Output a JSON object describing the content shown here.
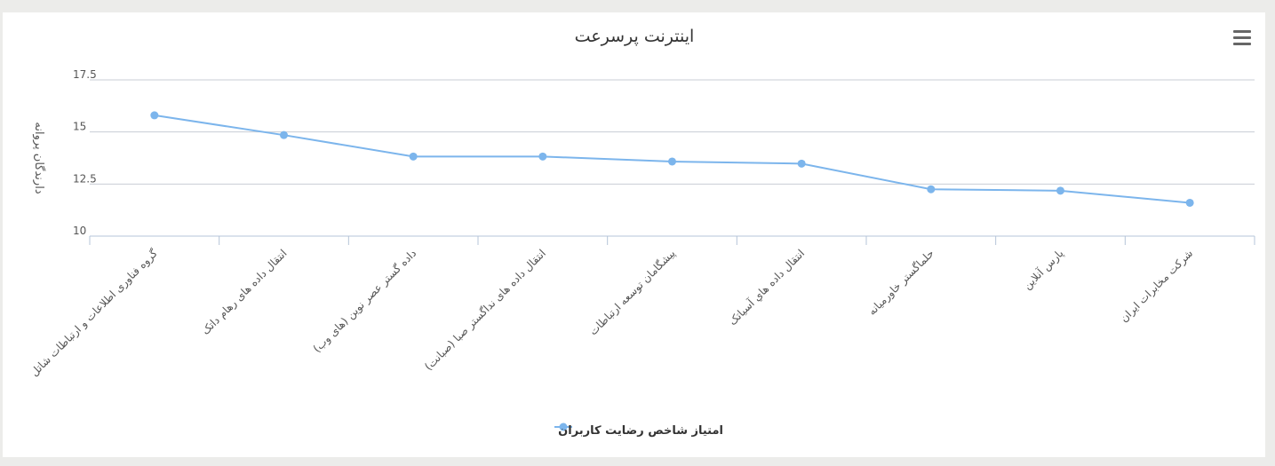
{
  "chart_data": {
    "type": "line",
    "title": "اینترنت پرسرعت",
    "ylabel": "دارندگان پروانه",
    "ylim": [
      10,
      17.5
    ],
    "yticks": [
      "10",
      "12.5",
      "15",
      "17.5"
    ],
    "categories": [
      "گروه فناوری اطلاعات و ارتباطات شاتل",
      "انتقال داده های رهام داتک",
      "داده گستر عصر نوین (های وب)",
      "انتقال داده های نداگستر صبا (صبانت)",
      "پیشگامان توسعه ارتباطات",
      "انتقال داده هاي آسياتک",
      "حلماگستر خاورمیانه",
      "پارس آنلاین",
      "شرکت مخابرات ایران"
    ],
    "series": [
      {
        "name": "امتیاز شاخص رضایت کاربران",
        "color": "#7cb5ec",
        "values": [
          15.8,
          14.85,
          13.82,
          13.82,
          13.58,
          13.48,
          12.25,
          12.18,
          11.6
        ]
      }
    ],
    "grid": true,
    "legend": "bottom-center"
  },
  "menu": {
    "icon": "hamburger-menu-icon"
  }
}
